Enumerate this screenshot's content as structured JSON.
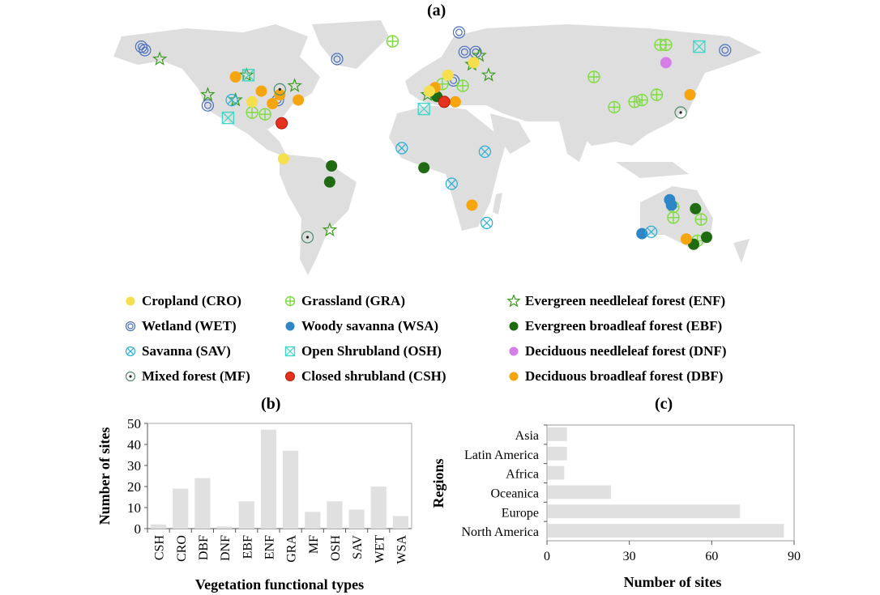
{
  "panels": {
    "a": "(a)",
    "b": "(b)",
    "c": "(c)"
  },
  "colors": {
    "land": "#dedede",
    "bar": "#e0e0e0",
    "CRO": "#f5df4d",
    "GRA": "#7ddc3e",
    "ENF": "#3c9a1e",
    "WET": "#4a6fc0",
    "WSA": "#2e86c6",
    "EBF": "#1f6b12",
    "SAV": "#29afd8",
    "OSH": "#3fd6c8",
    "DNF": "#d67de8",
    "MF": "#4d8b6c",
    "CSH": "#e5321c",
    "DBF": "#f5a50f"
  },
  "legend": [
    {
      "code": "CRO",
      "label": "Cropland (CRO)",
      "symbol": "filled-circle"
    },
    {
      "code": "WET",
      "label": "Wetland (WET)",
      "symbol": "double-circle"
    },
    {
      "code": "SAV",
      "label": "Savanna (SAV)",
      "symbol": "circle-x"
    },
    {
      "code": "MF",
      "label": "Mixed forest (MF)",
      "symbol": "circle-dot"
    },
    {
      "code": "GRA",
      "label": "Grassland (GRA)",
      "symbol": "circle-plus"
    },
    {
      "code": "WSA",
      "label": "Woody savanna (WSA)",
      "symbol": "filled-circle"
    },
    {
      "code": "OSH",
      "label": "Open Shrubland (OSH)",
      "symbol": "square-x"
    },
    {
      "code": "CSH",
      "label": "Closed shrubland (CSH)",
      "symbol": "filled-circle"
    },
    {
      "code": "ENF",
      "label": "Evergreen needleleaf forest (ENF)",
      "symbol": "star"
    },
    {
      "code": "EBF",
      "label": "Evergreen broadleaf forest (EBF)",
      "symbol": "filled-circle"
    },
    {
      "code": "DNF",
      "label": "Deciduous needleleaf forest (DNF)",
      "symbol": "filled-circle"
    },
    {
      "code": "DBF",
      "label": "Deciduous broadleaf forest (DBF)",
      "symbol": "filled-circle"
    }
  ],
  "chart_data": [
    {
      "type": "scatter",
      "panel": "(a)",
      "projection": "equirectangular world map",
      "x_unit": "longitude",
      "y_unit": "latitude",
      "sites": {
        "WET": [
          [
            -156,
            67
          ],
          [
            -154,
            65
          ],
          [
            -50,
            60
          ],
          [
            16,
            75
          ],
          [
            19,
            64
          ],
          [
            25,
            64
          ],
          [
            160,
            65
          ],
          [
            -120,
            34
          ],
          [
            -82,
            37
          ],
          [
            13,
            48
          ]
        ],
        "GRA": [
          [
            -20,
            70
          ],
          [
            89,
            50
          ],
          [
            100,
            33
          ],
          [
            111,
            36
          ],
          [
            115,
            37
          ],
          [
            123,
            40
          ],
          [
            125,
            68
          ],
          [
            128,
            68
          ],
          [
            -89,
            29
          ],
          [
            -96,
            30
          ],
          [
            132,
            -23
          ],
          [
            132,
            -29
          ],
          [
            147,
            -30
          ],
          [
            145,
            -42
          ],
          [
            7,
            46
          ],
          [
            18,
            45
          ]
        ],
        "ENF": [
          [
            -146,
            60
          ],
          [
            -120,
            40
          ],
          [
            -105,
            37
          ],
          [
            -73,
            45
          ],
          [
            23,
            57
          ],
          [
            27,
            62
          ],
          [
            32,
            51
          ],
          [
            -54,
            -36
          ],
          [
            -1,
            40
          ],
          [
            -99,
            51
          ]
        ],
        "EBF": [
          [
            -53,
            0
          ],
          [
            -54,
            -9
          ],
          [
            -3,
            -1
          ],
          [
            144,
            -24
          ],
          [
            150,
            -40
          ],
          [
            143,
            -44
          ],
          [
            4,
            39
          ]
        ],
        "DNF": [
          [
            128,
            58
          ]
        ],
        "DBF": [
          [
            -105,
            50
          ],
          [
            -91,
            42
          ],
          [
            -81,
            40
          ],
          [
            -71,
            37
          ],
          [
            -85,
            35
          ],
          [
            23,
            -22
          ],
          [
            141,
            40
          ],
          [
            139,
            -41
          ],
          [
            3,
            44
          ],
          [
            14,
            36
          ]
        ],
        "CRO": [
          [
            -79,
            4
          ],
          [
            10,
            51
          ],
          [
            -96,
            36
          ],
          [
            0,
            42
          ],
          [
            24,
            58
          ]
        ],
        "WSA": [
          [
            130,
            -19
          ],
          [
            115,
            -38
          ],
          [
            131,
            -22
          ]
        ],
        "SAV": [
          [
            -15,
            10
          ],
          [
            30,
            8
          ],
          [
            12,
            -10
          ],
          [
            31,
            -32
          ],
          [
            120,
            -37
          ],
          [
            -107,
            37
          ]
        ],
        "OSH": [
          [
            146,
            67
          ],
          [
            -3,
            32
          ],
          [
            -98,
            51
          ],
          [
            -109,
            27
          ]
        ],
        "CSH": [
          [
            -80,
            24
          ],
          [
            8,
            36
          ]
        ],
        "MF": [
          [
            -66,
            -40
          ],
          [
            136,
            30
          ],
          [
            -81,
            43
          ]
        ]
      }
    },
    {
      "type": "bar",
      "panel": "(b)",
      "categories": [
        "CSH",
        "CRO",
        "DBF",
        "DNF",
        "EBF",
        "ENF",
        "GRA",
        "MF",
        "OSH",
        "SAV",
        "WET",
        "WSA"
      ],
      "values": [
        2,
        19,
        24,
        1,
        13,
        47,
        37,
        8,
        13,
        9,
        20,
        6
      ],
      "xlabel": "Vegetation functional types",
      "ylabel": "Number of sites",
      "ylim": [
        0,
        50
      ],
      "yticks": [
        0,
        10,
        20,
        30,
        40,
        50
      ]
    },
    {
      "type": "bar",
      "orientation": "horizontal",
      "panel": "(c)",
      "categories": [
        "Asia",
        "Latin America",
        "Africa",
        "Oceanica",
        "Europe",
        "North America"
      ],
      "values": [
        7,
        7,
        6,
        23,
        70,
        86
      ],
      "xlabel": "Number of sites",
      "ylabel": "Regions",
      "xlim": [
        0,
        90
      ],
      "xticks": [
        0,
        30,
        60,
        90
      ]
    }
  ]
}
